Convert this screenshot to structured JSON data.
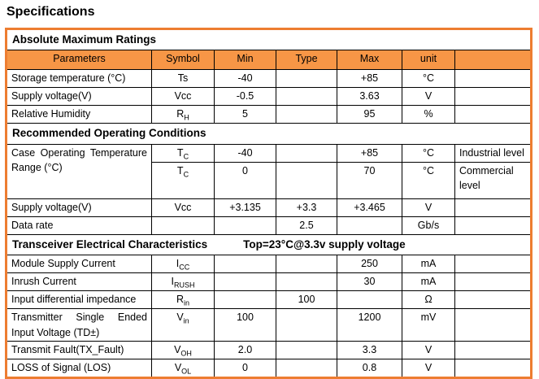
{
  "page": {
    "title": "Specifications"
  },
  "colors": {
    "header_fill": "#F79646",
    "outer_border": "#ED7D31",
    "grid": "#000000"
  },
  "table": {
    "columns": [
      "Parameters",
      "Symbol",
      "Min",
      "Type",
      "Max",
      "unit",
      ""
    ],
    "rows": [
      {
        "type": "section",
        "label": "Absolute Maximum Ratings"
      },
      {
        "type": "colheader"
      },
      {
        "type": "data",
        "param": "Storage temperature (°C)",
        "symbol": {
          "base": "Ts",
          "sub": ""
        },
        "min": "-40",
        "typ": "",
        "max": "+85",
        "unit": "°C",
        "note": ""
      },
      {
        "type": "data",
        "param": "Supply voltage(V)",
        "symbol": {
          "base": "Vcc",
          "sub": ""
        },
        "min": "-0.5",
        "typ": "",
        "max": "3.63",
        "unit": "V",
        "note": ""
      },
      {
        "type": "data",
        "param": "Relative Humidity",
        "symbol": {
          "base": "R",
          "sub": "H"
        },
        "min": "5",
        "typ": "",
        "max": "95",
        "unit": "%",
        "note": ""
      },
      {
        "type": "section",
        "label": "Recommended Operating Conditions"
      },
      {
        "type": "data",
        "param": "Case Operating Temperature Range (°C)",
        "param_rowspan": 2,
        "justify": true,
        "symbol": {
          "base": "T",
          "sub": "C"
        },
        "min": "-40",
        "typ": "",
        "max": "+85",
        "unit": "°C",
        "note": "Industrial level"
      },
      {
        "type": "data",
        "param": null,
        "tall": true,
        "symbol": {
          "base": "T",
          "sub": "C"
        },
        "min": "0",
        "typ": "",
        "max": "70",
        "unit": "°C",
        "note": "Commercial level"
      },
      {
        "type": "data",
        "param": "Supply voltage(V)",
        "symbol": {
          "base": "Vcc",
          "sub": ""
        },
        "min": "+3.135",
        "typ": "+3.3",
        "max": "+3.465",
        "unit": "V",
        "note": ""
      },
      {
        "type": "data",
        "param": "Data rate",
        "symbol": null,
        "min": "",
        "typ": "2.5",
        "max": "",
        "unit": "Gb/s",
        "note": ""
      },
      {
        "type": "section",
        "label": "Transceiver Electrical Characteristics",
        "extra": "Top=23°C@3.3v supply voltage"
      },
      {
        "type": "data",
        "param": "Module Supply Current",
        "symbol": {
          "base": "I",
          "sub": "CC"
        },
        "min": "",
        "typ": "",
        "max": "250",
        "unit": "mA",
        "note": ""
      },
      {
        "type": "data",
        "param": "Inrush Current",
        "symbol": {
          "base": "I",
          "sub": "RUSH"
        },
        "min": "",
        "typ": "",
        "max": "30",
        "unit": "mA",
        "note": ""
      },
      {
        "type": "data",
        "param": "Input differential impedance",
        "symbol": {
          "base": "R",
          "sub": "in"
        },
        "min": "",
        "typ": "100",
        "max": "",
        "unit": "Ω",
        "note": ""
      },
      {
        "type": "data",
        "param": "Transmitter Single Ended Input Voltage (TD±)",
        "justify": true,
        "symbol": {
          "base": "V",
          "sub": "in"
        },
        "min": "100",
        "typ": "",
        "max": "1200",
        "unit": "mV",
        "note": ""
      },
      {
        "type": "data",
        "param": "Transmit Fault(TX_Fault)",
        "symbol": {
          "base": "V",
          "sub": "OH"
        },
        "min": "2.0",
        "typ": "",
        "max": "3.3",
        "unit": "V",
        "note": ""
      },
      {
        "type": "data",
        "param": "LOSS of Signal (LOS)",
        "symbol": {
          "base": "V",
          "sub": "OL"
        },
        "min": "0",
        "typ": "",
        "max": "0.8",
        "unit": "V",
        "note": ""
      }
    ]
  }
}
